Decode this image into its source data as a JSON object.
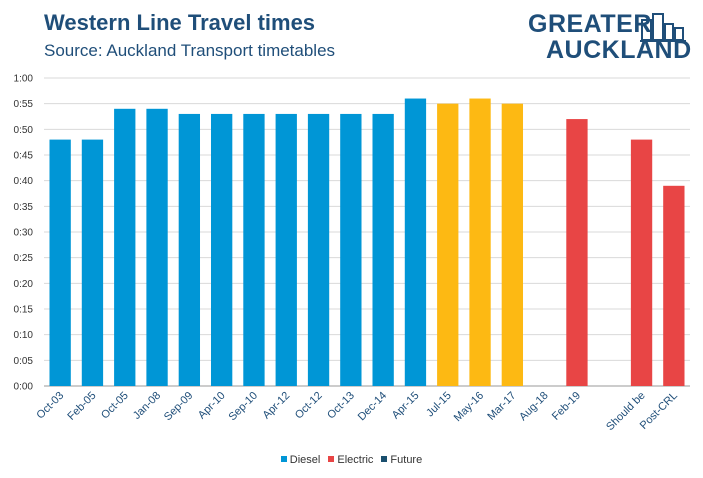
{
  "header": {
    "title": "Western Line Travel times",
    "subtitle": "Source: Auckland Transport timetables"
  },
  "logo": {
    "line1": "GREATER",
    "line2": "AUCKLAND",
    "icon": "city-buildings-icon"
  },
  "colors": {
    "Diesel": "#0096d6",
    "Electric": "#e84545",
    "Future": "#1a4f6e",
    "Transitional": "#fdb913",
    "axis": "#999999",
    "grid": "#d9d9d9"
  },
  "legend": [
    "Diesel",
    "Electric",
    "Future"
  ],
  "chart_data": {
    "type": "bar",
    "title": "Western Line Travel times",
    "subtitle": "Source: Auckland Transport timetables",
    "xlabel": "",
    "ylabel": "",
    "y_ticks": [
      "0:00",
      "0:05",
      "0:10",
      "0:15",
      "0:20",
      "0:25",
      "0:30",
      "0:35",
      "0:40",
      "0:45",
      "0:50",
      "0:55",
      "1:00"
    ],
    "ylim_minutes": [
      0,
      60
    ],
    "grid": true,
    "legend_position": "bottom",
    "categories": [
      "Oct-03",
      "Feb-05",
      "Oct-05",
      "Jan-08",
      "Sep-09",
      "Apr-10",
      "Sep-10",
      "Apr-12",
      "Oct-12",
      "Oct-13",
      "Dec-14",
      "Apr-15",
      "Jul-15",
      "May-16",
      "Mar-17",
      "Aug-18",
      "Feb-19",
      "",
      "Should be",
      "Post-CRL"
    ],
    "values_minutes": [
      48,
      48,
      54,
      54,
      53,
      53,
      53,
      53,
      53,
      53,
      53,
      56,
      55,
      56,
      55,
      null,
      52,
      null,
      48,
      39
    ],
    "bar_color_group": [
      "Diesel",
      "Diesel",
      "Diesel",
      "Diesel",
      "Diesel",
      "Diesel",
      "Diesel",
      "Diesel",
      "Diesel",
      "Diesel",
      "Diesel",
      "Diesel",
      "Transitional",
      "Transitional",
      "Transitional",
      "Electric",
      "Electric",
      "Electric",
      "Electric",
      "Electric"
    ]
  }
}
